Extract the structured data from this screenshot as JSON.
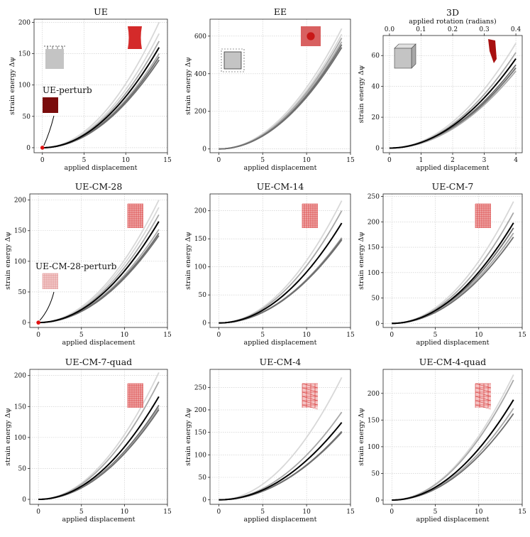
{
  "figure": {
    "x_axis_label": "applied displacement",
    "y_axis_label": "strain energy Δψ",
    "secondary_x_axis_label": "applied rotation (radians)"
  },
  "colors": {
    "highlight_series": "#000000",
    "light_series": "#d8d8d8",
    "mid_series": "#a8a8a8",
    "dark_series": "#6e6e6e",
    "thumbnail_red": "#d42a2a",
    "marker_red": "#e01010"
  },
  "chart_data": [
    {
      "type": "line",
      "title": "UE",
      "xlabel": "applied displacement",
      "ylabel": "strain energy Δψ",
      "xlim": [
        -1,
        15
      ],
      "ylim": [
        -8,
        205
      ],
      "xticks": [
        0,
        5,
        10,
        15
      ],
      "yticks": [
        0,
        50,
        100,
        150,
        200
      ],
      "thumbnail": "red-deformed-block-icon",
      "schematic": "tension-block-schematic-icon",
      "series": [
        {
          "name": "light-1",
          "shade": "light",
          "final": 200
        },
        {
          "name": "light-2",
          "shade": "light",
          "final": 182
        },
        {
          "name": "mid-1",
          "shade": "mid",
          "final": 170
        },
        {
          "name": "highlight",
          "shade": "highlight",
          "final": 160
        },
        {
          "name": "mid-2",
          "shade": "mid",
          "final": 150
        },
        {
          "name": "dark-1",
          "shade": "dark",
          "final": 145
        },
        {
          "name": "dark-2",
          "shade": "dark",
          "final": 140
        }
      ],
      "annotation": {
        "label": "UE-perturb",
        "point": [
          0,
          0
        ]
      }
    },
    {
      "type": "line",
      "title": "EE",
      "xlabel": "applied displacement",
      "ylabel": "strain energy Δψ",
      "xlim": [
        -1,
        15
      ],
      "ylim": [
        -20,
        690
      ],
      "xticks": [
        0,
        5,
        10,
        15
      ],
      "yticks": [
        0,
        200,
        400,
        600
      ],
      "thumbnail": "red-blob-square-icon",
      "schematic": "biaxial-block-schematic-icon",
      "series": [
        {
          "name": "light-1",
          "shade": "light",
          "final": 640
        },
        {
          "name": "light-2",
          "shade": "light",
          "final": 610
        },
        {
          "name": "mid-1",
          "shade": "mid",
          "final": 590
        },
        {
          "name": "highlight",
          "shade": "mid",
          "final": 570
        },
        {
          "name": "dark-1",
          "shade": "dark",
          "final": 555
        },
        {
          "name": "dark-2",
          "shade": "dark",
          "final": 540
        }
      ]
    },
    {
      "type": "line",
      "title": "3D",
      "xlabel": "applied displacement",
      "ylabel": "strain energy Δψ",
      "xlim": [
        -0.2,
        4.2
      ],
      "ylim": [
        -3,
        73
      ],
      "xticks": [
        0,
        1,
        2,
        3,
        4
      ],
      "yticks": [
        0,
        20,
        40,
        60
      ],
      "secondary_xlabel": "applied rotation (radians)",
      "secondary_xticks": [
        "0.0",
        "0.1",
        "0.2",
        "0.3",
        "0.4"
      ],
      "thumbnail": "red-twisted-column-icon",
      "schematic": "cube-schematic-icon",
      "series": [
        {
          "name": "light-1",
          "shade": "light",
          "final": 68
        },
        {
          "name": "mid-1",
          "shade": "mid",
          "final": 62
        },
        {
          "name": "highlight",
          "shade": "highlight",
          "final": 58
        },
        {
          "name": "dark-1",
          "shade": "dark",
          "final": 54
        },
        {
          "name": "dark-2",
          "shade": "dark",
          "final": 52
        },
        {
          "name": "mid-2",
          "shade": "mid",
          "final": 50
        }
      ]
    },
    {
      "type": "line",
      "title": "UE-CM-28",
      "xlabel": "applied displacement",
      "ylabel": "strain energy Δψ",
      "xlim": [
        -1,
        15
      ],
      "ylim": [
        -8,
        210
      ],
      "xticks": [
        0,
        5,
        10,
        15
      ],
      "yticks": [
        0,
        50,
        100,
        150,
        200
      ],
      "thumbnail": "red-mesh-block-icon",
      "series": [
        {
          "name": "light-1",
          "shade": "light",
          "final": 200
        },
        {
          "name": "light-2",
          "shade": "light",
          "final": 188
        },
        {
          "name": "mid-1",
          "shade": "mid",
          "final": 176
        },
        {
          "name": "highlight",
          "shade": "highlight",
          "final": 165
        },
        {
          "name": "mid-2",
          "shade": "mid",
          "final": 152
        },
        {
          "name": "dark-1",
          "shade": "dark",
          "final": 146
        },
        {
          "name": "dark-2",
          "shade": "dark",
          "final": 142
        }
      ],
      "annotation": {
        "label": "UE-CM-28-perturb",
        "point": [
          0,
          0
        ]
      }
    },
    {
      "type": "line",
      "title": "UE-CM-14",
      "xlabel": "applied displacement",
      "ylabel": "strain energy Δψ",
      "xlim": [
        -1,
        15
      ],
      "ylim": [
        -8,
        230
      ],
      "xticks": [
        0,
        5,
        10,
        15
      ],
      "yticks": [
        0,
        50,
        100,
        150,
        200
      ],
      "thumbnail": "red-mesh-block-icon",
      "series": [
        {
          "name": "light-1",
          "shade": "light",
          "final": 218
        },
        {
          "name": "mid-1",
          "shade": "mid",
          "final": 200
        },
        {
          "name": "highlight",
          "shade": "highlight",
          "final": 178
        },
        {
          "name": "mid-2",
          "shade": "mid",
          "final": 152
        },
        {
          "name": "dark-1",
          "shade": "dark",
          "final": 150
        },
        {
          "name": "dark-2",
          "shade": "dark",
          "final": 148
        }
      ]
    },
    {
      "type": "line",
      "title": "UE-CM-7",
      "xlabel": "applied displacement",
      "ylabel": "strain energy Δψ",
      "xlim": [
        -1,
        15
      ],
      "ylim": [
        -8,
        255
      ],
      "xticks": [
        0,
        5,
        10,
        15
      ],
      "yticks": [
        0,
        50,
        100,
        150,
        200,
        250
      ],
      "thumbnail": "red-mesh-block-icon",
      "series": [
        {
          "name": "light-1",
          "shade": "light",
          "final": 240
        },
        {
          "name": "mid-1",
          "shade": "mid",
          "final": 218
        },
        {
          "name": "highlight",
          "shade": "highlight",
          "final": 198
        },
        {
          "name": "dark-1",
          "shade": "dark",
          "final": 188
        },
        {
          "name": "mid-2",
          "shade": "mid",
          "final": 178
        },
        {
          "name": "dark-2",
          "shade": "dark",
          "final": 170
        }
      ]
    },
    {
      "type": "line",
      "title": "UE-CM-7-quad",
      "xlabel": "applied displacement",
      "ylabel": "strain energy Δψ",
      "xlim": [
        -1,
        15
      ],
      "ylim": [
        -8,
        210
      ],
      "xticks": [
        0,
        5,
        10,
        15
      ],
      "yticks": [
        0,
        50,
        100,
        150,
        200
      ],
      "thumbnail": "red-mesh-block-icon",
      "series": [
        {
          "name": "light-1",
          "shade": "light",
          "final": 205
        },
        {
          "name": "mid-1",
          "shade": "mid",
          "final": 190
        },
        {
          "name": "highlight",
          "shade": "highlight",
          "final": 166
        },
        {
          "name": "dark-1",
          "shade": "dark",
          "final": 152
        },
        {
          "name": "mid-2",
          "shade": "mid",
          "final": 148
        },
        {
          "name": "dark-2",
          "shade": "dark",
          "final": 145
        }
      ]
    },
    {
      "type": "line",
      "title": "UE-CM-4",
      "xlabel": "applied displacement",
      "ylabel": "strain energy Δψ",
      "xlim": [
        -1,
        15
      ],
      "ylim": [
        -10,
        290
      ],
      "xticks": [
        0,
        5,
        10,
        15
      ],
      "yticks": [
        0,
        50,
        100,
        150,
        200,
        250
      ],
      "thumbnail": "red-coarse-mesh-block-icon",
      "series": [
        {
          "name": "light-1",
          "shade": "light",
          "final": 272
        },
        {
          "name": "mid-1",
          "shade": "mid",
          "final": 195
        },
        {
          "name": "highlight",
          "shade": "highlight",
          "final": 172
        },
        {
          "name": "dark-1",
          "shade": "dark",
          "final": 152
        },
        {
          "name": "dark-2",
          "shade": "dark",
          "final": 150
        }
      ]
    },
    {
      "type": "line",
      "title": "UE-CM-4-quad",
      "xlabel": "applied displacement",
      "ylabel": "strain energy Δψ",
      "xlim": [
        -1,
        15
      ],
      "ylim": [
        -8,
        245
      ],
      "xticks": [
        0,
        5,
        10,
        15
      ],
      "yticks": [
        0,
        50,
        100,
        150,
        200
      ],
      "thumbnail": "red-coarse-mesh-block-icon",
      "series": [
        {
          "name": "light-1",
          "shade": "light",
          "final": 235
        },
        {
          "name": "mid-1",
          "shade": "mid",
          "final": 225
        },
        {
          "name": "highlight",
          "shade": "highlight",
          "final": 188
        },
        {
          "name": "mid-2",
          "shade": "mid",
          "final": 172
        },
        {
          "name": "dark-1",
          "shade": "dark",
          "final": 162
        }
      ]
    }
  ]
}
